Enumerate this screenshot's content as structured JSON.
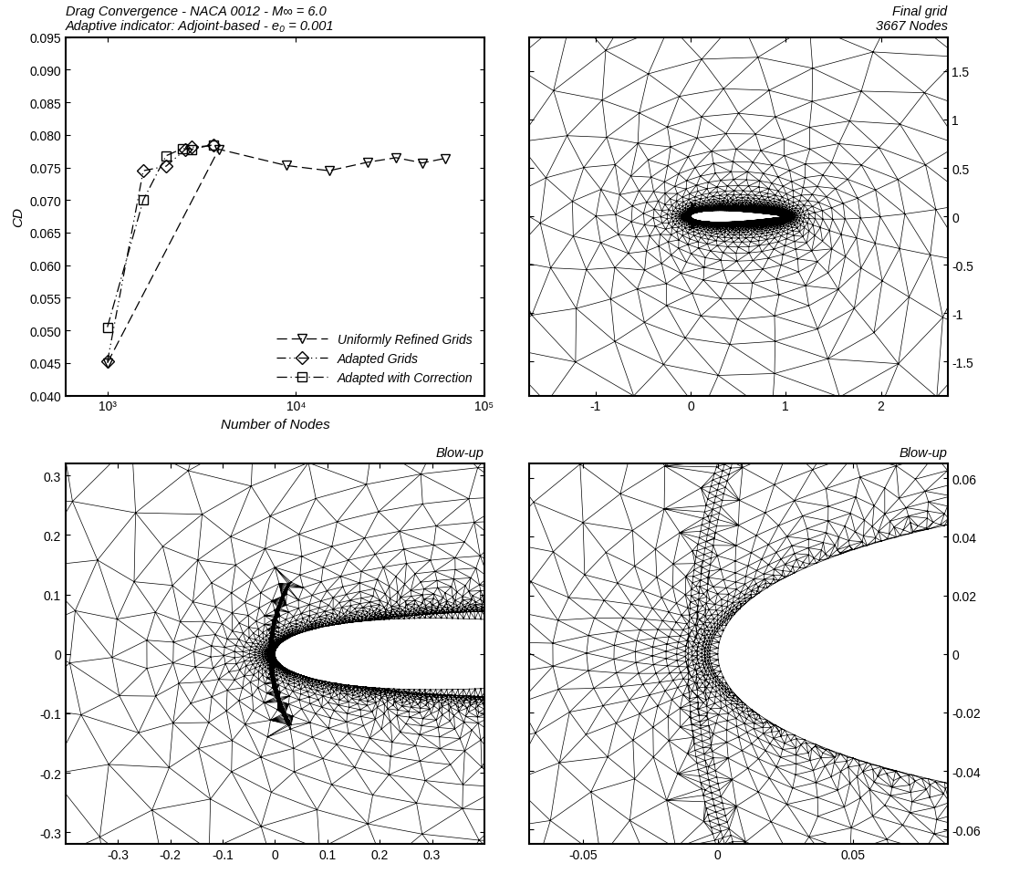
{
  "chart_data": [
    {
      "type": "line",
      "title": "Drag Convergence - NACA 0012 - M∞ = 6.0",
      "subtitle": "Adaptive indicator: Adjoint-based - e₀ = 0.001",
      "x_label": "Number of Nodes",
      "y_label": "CD",
      "log": "x",
      "xlim": [
        600,
        100000
      ],
      "xticks": [
        {
          "value": 1000,
          "label": "10³"
        },
        {
          "value": 10000,
          "label": "10⁴"
        },
        {
          "value": 100000,
          "label": "10⁵"
        }
      ],
      "ylim": [
        0.04,
        0.095
      ],
      "yticks": [
        {
          "value": 0.04,
          "label": "0.040"
        },
        {
          "value": 0.045,
          "label": "0.045"
        },
        {
          "value": 0.05,
          "label": "0.050"
        },
        {
          "value": 0.055,
          "label": "0.055"
        },
        {
          "value": 0.06,
          "label": "0.060"
        },
        {
          "value": 0.065,
          "label": "0.065"
        },
        {
          "value": 0.07,
          "label": "0.070"
        },
        {
          "value": 0.075,
          "label": "0.075"
        },
        {
          "value": 0.08,
          "label": "0.080"
        },
        {
          "value": 0.085,
          "label": "0.085"
        },
        {
          "value": 0.09,
          "label": "0.090"
        },
        {
          "value": 0.095,
          "label": "0.095"
        }
      ],
      "legend": "lower right",
      "series": [
        {
          "name": "Uniformly Refined Grids",
          "color": "#000000",
          "marker": "triangle_down",
          "line_style": "dashed",
          "x": [
            1000,
            3900,
            8900,
            15000,
            24000,
            34000,
            47000,
            62000
          ],
          "values": [
            0.045,
            0.0778,
            0.0753,
            0.0745,
            0.0758,
            0.0765,
            0.0757,
            0.0764
          ]
        },
        {
          "name": "Adapted Grids",
          "color": "#000000",
          "marker": "diamond",
          "line_style": "dashdotdot",
          "x": [
            1000,
            1550,
            2050,
            2600,
            2800,
            3667
          ],
          "values": [
            0.0452,
            0.0745,
            0.0752,
            0.0778,
            0.0781,
            0.0784
          ]
        },
        {
          "name": "Adapted with Correction",
          "color": "#000000",
          "marker": "square",
          "line_style": "dashdot",
          "x": [
            1000,
            1550,
            2050,
            2500,
            2800,
            3667
          ],
          "values": [
            0.0505,
            0.07,
            0.0768,
            0.0779,
            0.0778,
            0.0785
          ]
        }
      ]
    },
    {
      "type": "mesh",
      "title": "Final grid\n3667 Nodes",
      "color": "#000000",
      "xlim": [
        -1.7,
        2.7
      ],
      "xticks": [
        -1,
        0,
        1,
        2
      ],
      "ylim": [
        -1.85,
        1.85
      ],
      "yticks": [
        -1.5,
        -1,
        -0.5,
        0,
        0.5,
        1,
        1.5
      ]
    },
    {
      "type": "mesh",
      "title": "Blow-up",
      "color": "#000000",
      "xlim": [
        -0.4,
        0.4
      ],
      "xticks": [
        -0.3,
        -0.2,
        -0.1,
        0,
        0.1,
        0.2,
        0.3
      ],
      "ylim": [
        -0.32,
        0.32
      ],
      "yticks": [
        -0.3,
        -0.2,
        -0.1,
        0,
        0.1,
        0.2,
        0.3
      ]
    },
    {
      "type": "mesh",
      "title": "Blow-up",
      "color": "#000000",
      "xlim": [
        -0.07,
        0.085
      ],
      "xticks": [
        -0.05,
        0,
        0.05
      ],
      "ylim": [
        -0.065,
        0.065
      ],
      "yticks": [
        -0.06,
        -0.04,
        -0.02,
        0,
        0.02,
        0.04,
        0.06
      ]
    }
  ]
}
